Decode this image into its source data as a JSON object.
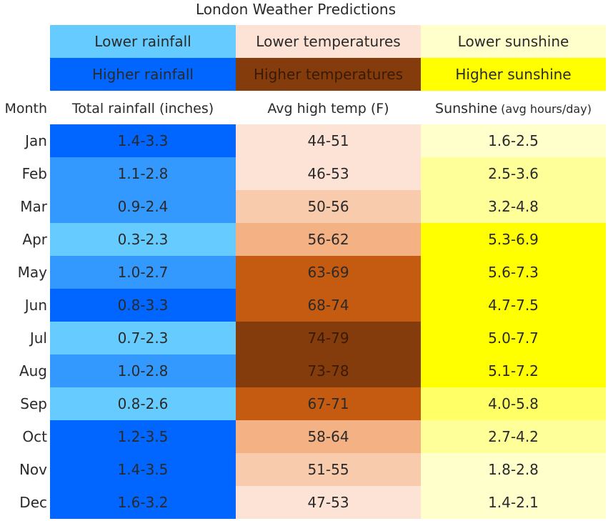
{
  "chart_data": {
    "type": "table",
    "title": "London Weather Predictions",
    "legend": [
      {
        "low": "Lower rainfall",
        "high": "Higher rainfall",
        "low_color": "#66ccff",
        "high_color": "#0066ff"
      },
      {
        "low": "Lower temperatures",
        "high": "Higher temperatures",
        "low_color": "#fde3d6",
        "high_color": "#843c0c"
      },
      {
        "low": "Lower sunshine",
        "high": "Higher sunshine",
        "low_color": "#ffffcc",
        "high_color": "#ffff00"
      }
    ],
    "columns": {
      "month": "Month",
      "rainfall": "Total rainfall (inches)",
      "temp": "Avg high temp (F)",
      "sunshine": "Sunshine",
      "sunshine_unit": "(avg hours/day)"
    },
    "rows": [
      {
        "month": "Jan",
        "rainfall": "1.4-3.3",
        "temp": "44-51",
        "sunshine": "1.6-2.5",
        "rain_color": "#0066ff",
        "temp_color": "#fde3d6",
        "sun_color": "#ffffcc"
      },
      {
        "month": "Feb",
        "rainfall": "1.1-2.8",
        "temp": "46-53",
        "sunshine": "2.5-3.6",
        "rain_color": "#3399ff",
        "temp_color": "#fde3d6",
        "sun_color": "#ffff99"
      },
      {
        "month": "Mar",
        "rainfall": "0.9-2.4",
        "temp": "50-56",
        "sunshine": "3.2-4.8",
        "rain_color": "#3399ff",
        "temp_color": "#f8cbad",
        "sun_color": "#ffff99"
      },
      {
        "month": "Apr",
        "rainfall": "0.3-2.3",
        "temp": "56-62",
        "sunshine": "5.3-6.9",
        "rain_color": "#66ccff",
        "temp_color": "#f4b183",
        "sun_color": "#ffff00"
      },
      {
        "month": "May",
        "rainfall": "1.0-2.7",
        "temp": "63-69",
        "sunshine": "5.6-7.3",
        "rain_color": "#3399ff",
        "temp_color": "#c55a11",
        "sun_color": "#ffff00"
      },
      {
        "month": "Jun",
        "rainfall": "0.8-3.3",
        "temp": "68-74",
        "sunshine": "4.7-7.5",
        "rain_color": "#0066ff",
        "temp_color": "#c55a11",
        "sun_color": "#ffff00"
      },
      {
        "month": "Jul",
        "rainfall": "0.7-2.3",
        "temp": "74-79",
        "sunshine": "5.0-7.7",
        "rain_color": "#66ccff",
        "temp_color": "#843c0c",
        "sun_color": "#ffff00"
      },
      {
        "month": "Aug",
        "rainfall": "1.0-2.8",
        "temp": "73-78",
        "sunshine": "5.1-7.2",
        "rain_color": "#3399ff",
        "temp_color": "#843c0c",
        "sun_color": "#ffff00"
      },
      {
        "month": "Sep",
        "rainfall": "0.8-2.6",
        "temp": "67-71",
        "sunshine": "4.0-5.8",
        "rain_color": "#66ccff",
        "temp_color": "#c55a11",
        "sun_color": "#ffff66"
      },
      {
        "month": "Oct",
        "rainfall": "1.2-3.5",
        "temp": "58-64",
        "sunshine": "2.7-4.2",
        "rain_color": "#0066ff",
        "temp_color": "#f4b183",
        "sun_color": "#ffff99"
      },
      {
        "month": "Nov",
        "rainfall": "1.4-3.5",
        "temp": "51-55",
        "sunshine": "1.8-2.8",
        "rain_color": "#0066ff",
        "temp_color": "#f8cbad",
        "sun_color": "#ffffcc"
      },
      {
        "month": "Dec",
        "rainfall": "1.6-3.2",
        "temp": "47-53",
        "sunshine": "1.4-2.1",
        "rain_color": "#0066ff",
        "temp_color": "#fde3d6",
        "sun_color": "#ffffcc"
      }
    ]
  }
}
